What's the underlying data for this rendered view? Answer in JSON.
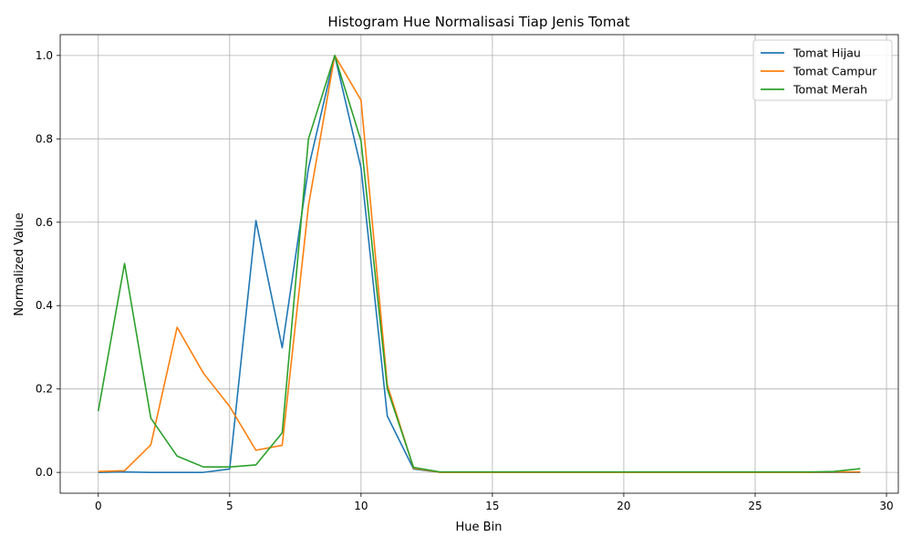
{
  "chart_data": {
    "type": "line",
    "title": "Histogram Hue Normalisasi Tiap Jenis Tomat",
    "xlabel": "Hue Bin",
    "ylabel": "Normalized Value",
    "xlim": [
      -1.45,
      30.45
    ],
    "ylim": [
      -0.05,
      1.05
    ],
    "xticks": [
      0,
      5,
      10,
      15,
      20,
      25,
      30
    ],
    "yticks": [
      0.0,
      0.2,
      0.4,
      0.6,
      0.8,
      1.0
    ],
    "xtick_labels": [
      "0",
      "5",
      "10",
      "15",
      "20",
      "25",
      "30"
    ],
    "ytick_labels": [
      "0.0",
      "0.2",
      "0.4",
      "0.6",
      "0.8",
      "1.0"
    ],
    "grid": true,
    "legend_position": "top-right",
    "x": [
      0,
      1,
      2,
      3,
      4,
      5,
      6,
      7,
      8,
      9,
      10,
      11,
      12,
      13,
      14,
      15,
      16,
      17,
      18,
      19,
      20,
      21,
      22,
      23,
      24,
      25,
      26,
      27,
      28,
      29
    ],
    "series": [
      {
        "name": "Tomat Hijau",
        "color": "#1f77b4",
        "values": [
          0.0,
          0.001,
          0.0,
          0.0,
          0.0,
          0.008,
          0.604,
          0.299,
          0.73,
          1.0,
          0.73,
          0.135,
          0.008,
          0.0,
          0.0,
          0.0,
          0.0,
          0.0,
          0.0,
          0.0,
          0.0,
          0.0,
          0.0,
          0.0,
          0.0,
          0.0,
          0.0,
          0.0,
          0.0,
          0.0
        ]
      },
      {
        "name": "Tomat Campur",
        "color": "#ff7f0e",
        "values": [
          0.002,
          0.004,
          0.066,
          0.348,
          0.238,
          0.158,
          0.053,
          0.065,
          0.64,
          1.0,
          0.893,
          0.21,
          0.01,
          0.0,
          0.0,
          0.0,
          0.0,
          0.0,
          0.0,
          0.0,
          0.0,
          0.0,
          0.0,
          0.0,
          0.0,
          0.0,
          0.0,
          0.0,
          0.001,
          0.001
        ]
      },
      {
        "name": "Tomat Merah",
        "color": "#2ca02c",
        "values": [
          0.147,
          0.501,
          0.13,
          0.039,
          0.013,
          0.013,
          0.018,
          0.095,
          0.8,
          1.0,
          0.795,
          0.2,
          0.012,
          0.001,
          0.001,
          0.001,
          0.001,
          0.001,
          0.001,
          0.001,
          0.001,
          0.001,
          0.001,
          0.001,
          0.001,
          0.001,
          0.001,
          0.001,
          0.002,
          0.009
        ]
      }
    ]
  }
}
